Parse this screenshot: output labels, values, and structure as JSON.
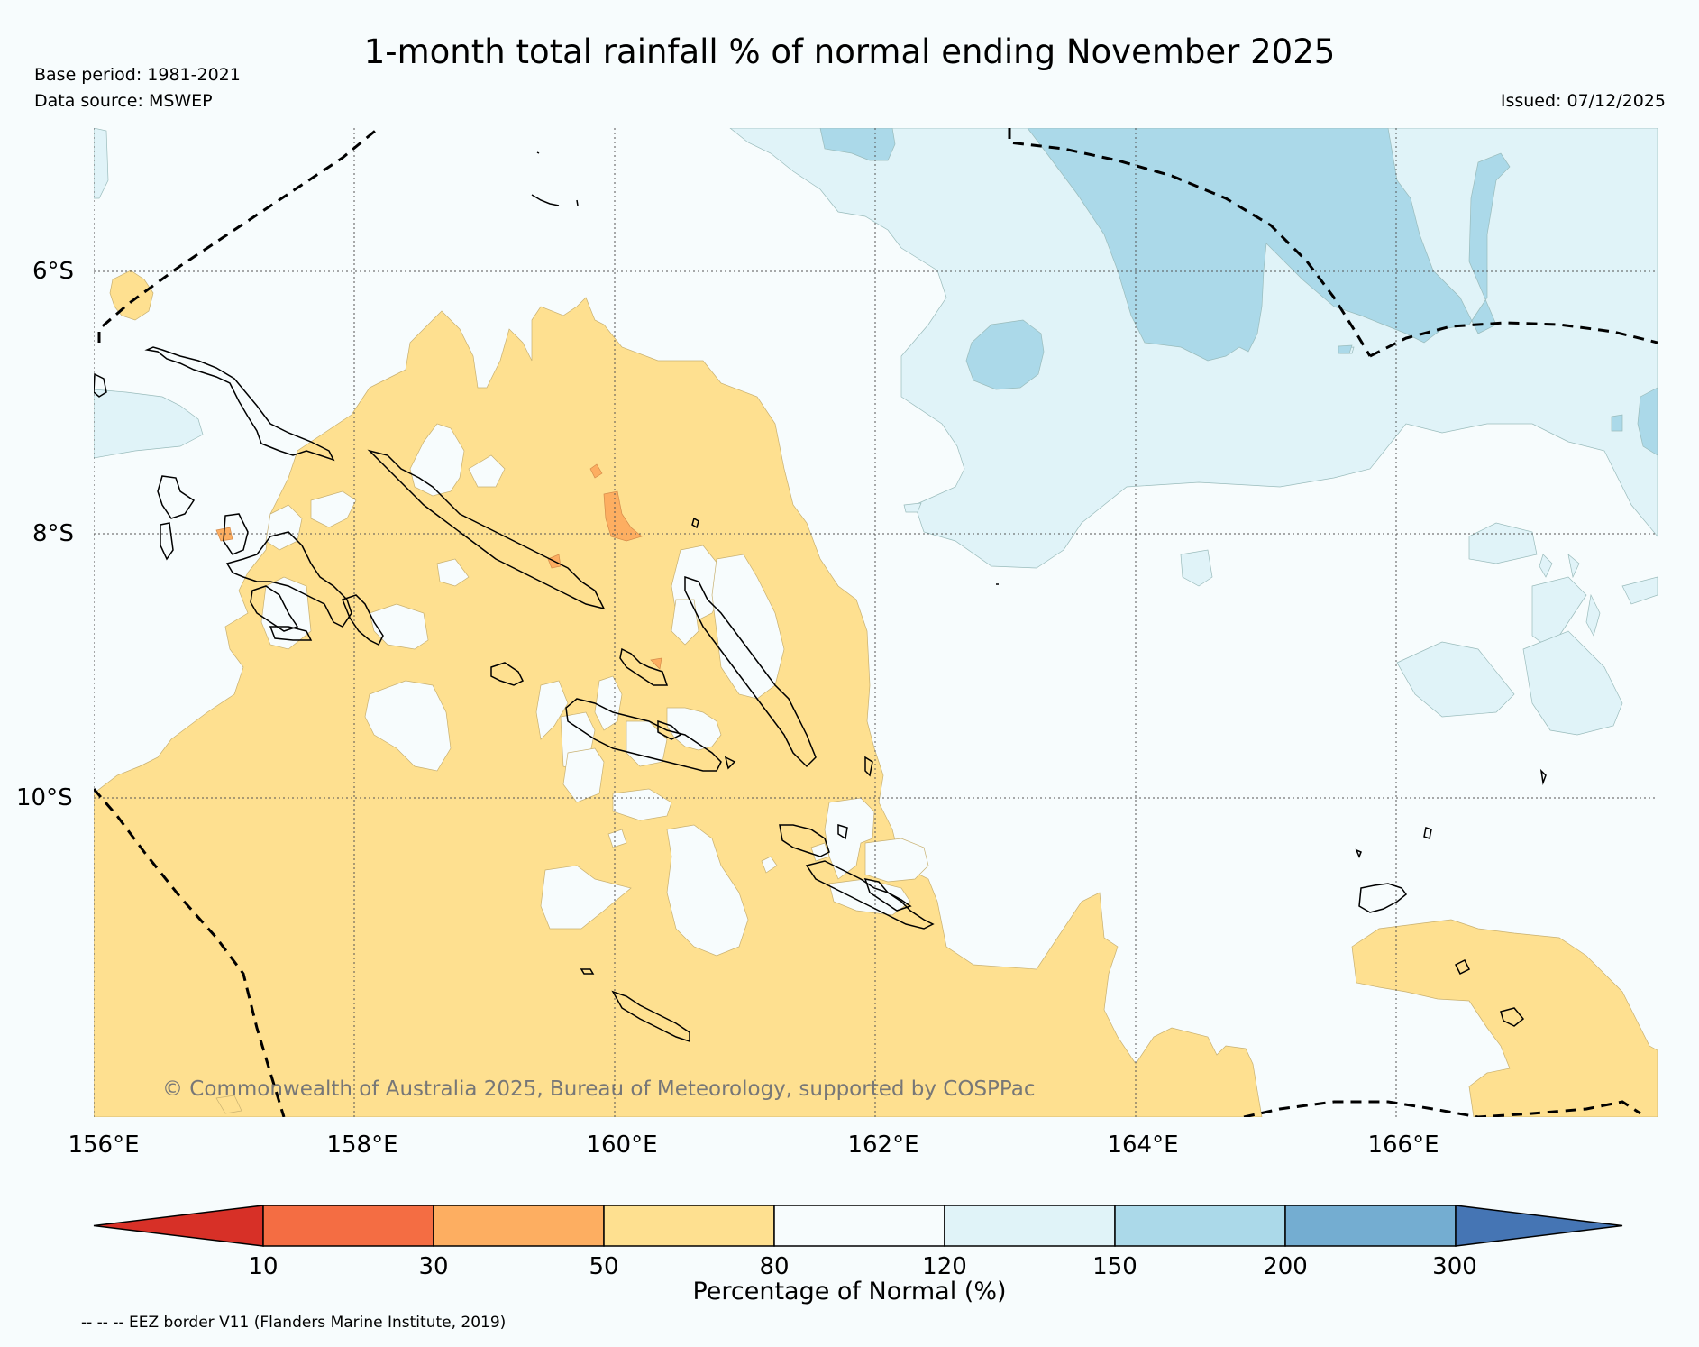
{
  "header": {
    "title": "1-month total rainfall % of normal ending November 2025",
    "base_period": "Base period: 1981-2021",
    "data_source": "Data source: MSWEP",
    "issued": "Issued: 07/12/2025"
  },
  "map": {
    "x_ticks": [
      "156°E",
      "158°E",
      "160°E",
      "162°E",
      "164°E",
      "166°E"
    ],
    "y_ticks": [
      "6°S",
      "8°S",
      "10°S"
    ],
    "copyright": "© Commonwealth of Australia 2025, Bureau of Meteorology, supported by COSPPac"
  },
  "colorbar": {
    "labels": [
      "10",
      "30",
      "50",
      "80",
      "120",
      "150",
      "200",
      "300"
    ],
    "colors": [
      "#d73027",
      "#f46d43",
      "#fdae61",
      "#fee090",
      "#f7fcfd",
      "#e0f3f8",
      "#abd9e9",
      "#74add1",
      "#4575b4"
    ],
    "title": "Percentage of Normal (%)"
  },
  "legend": {
    "eez_note": "-- -- -- EEZ border V11 (Flanders Marine Institute, 2019)"
  }
}
